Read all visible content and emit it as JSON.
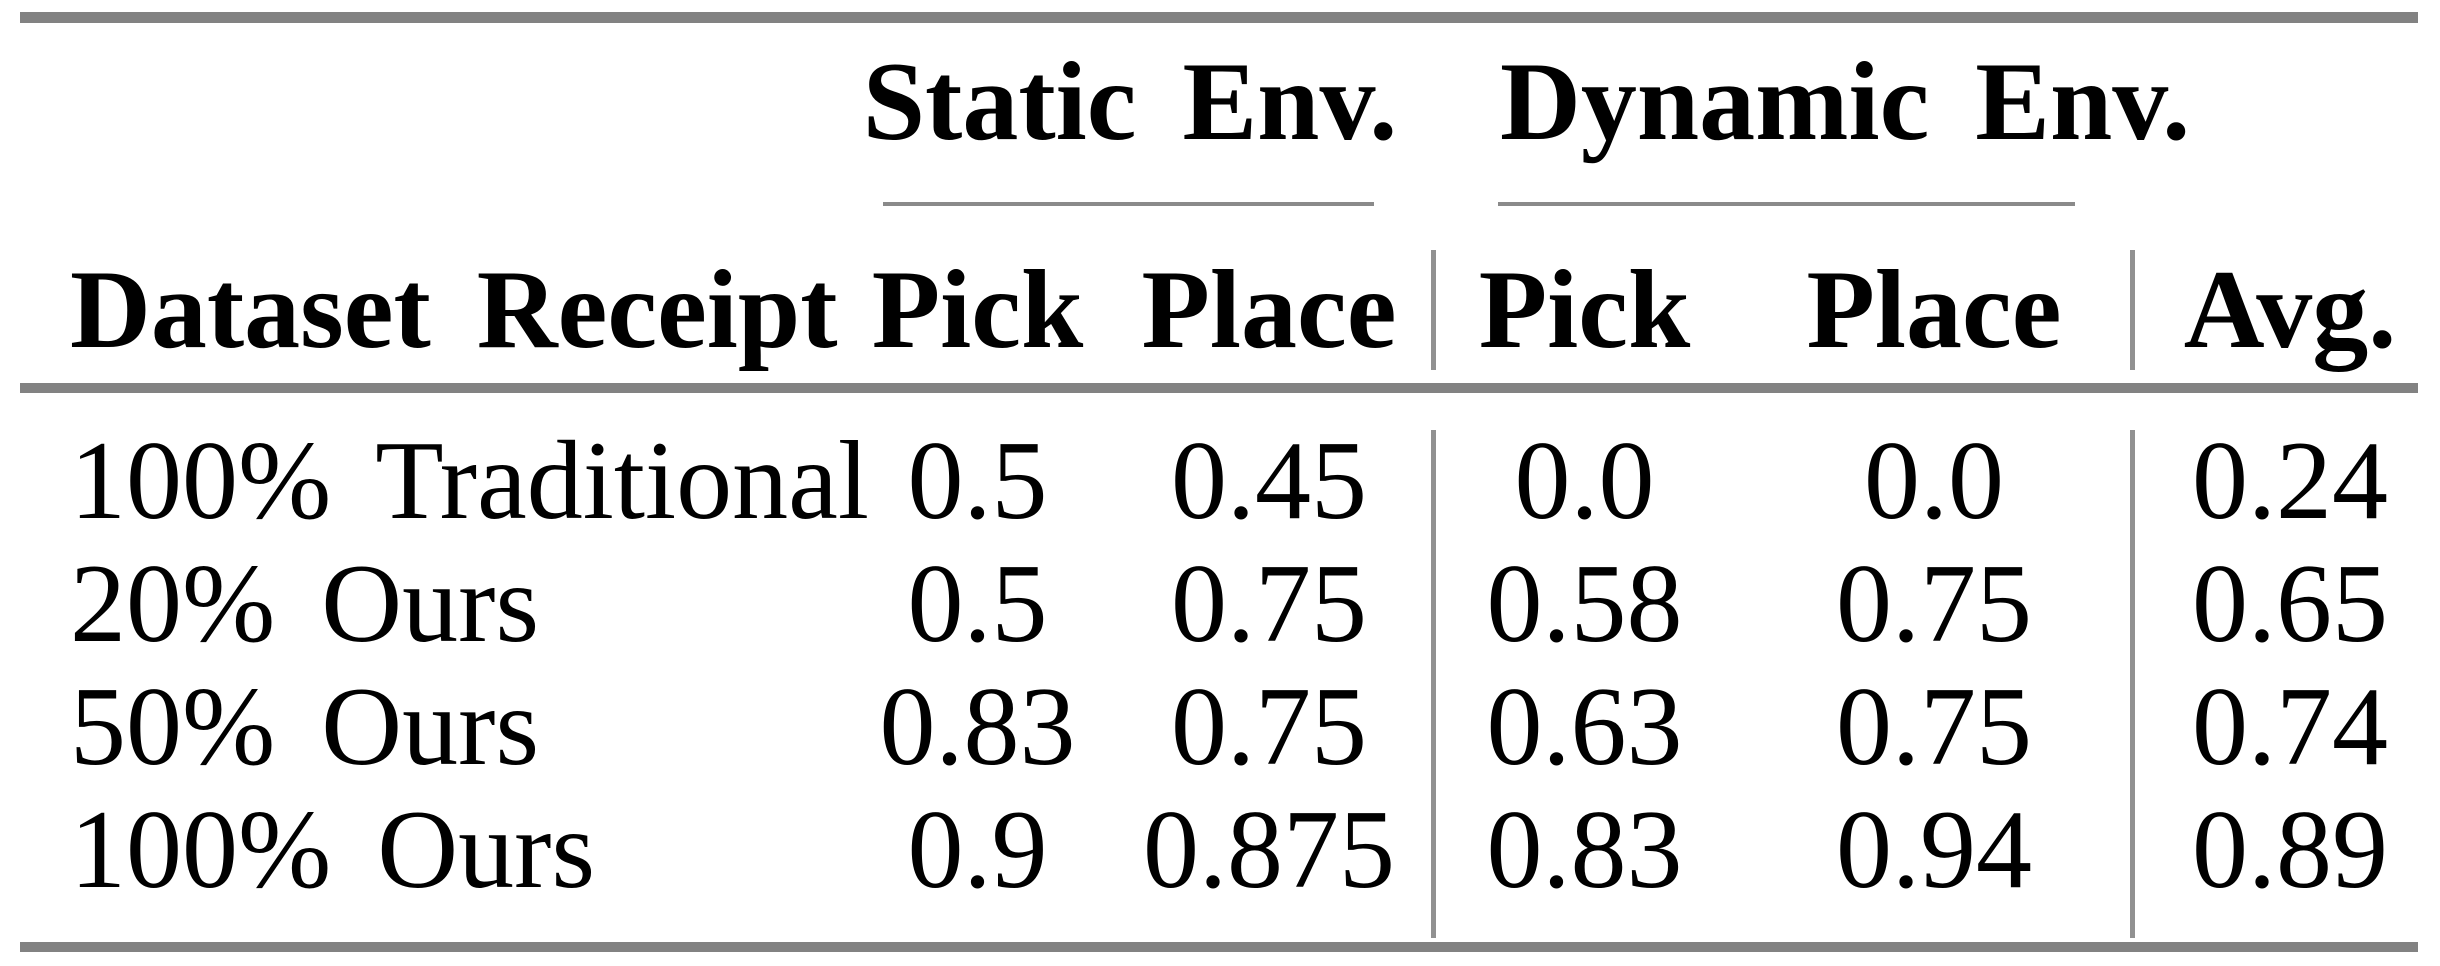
{
  "table": {
    "group_headers": {
      "static": "Static Env.",
      "dynamic": "Dynamic Env."
    },
    "column_headers": {
      "row_header": "Dataset Receipt",
      "static_pick": "Pick",
      "static_place": "Place",
      "dynamic_pick": "Pick",
      "dynamic_place": "Place",
      "avg": "Avg."
    },
    "rows": [
      {
        "label": "100% Traditional",
        "static_pick": "0.5",
        "static_place": "0.45",
        "dynamic_pick": "0.0",
        "dynamic_place": "0.0",
        "avg": "0.24"
      },
      {
        "label": "20% Ours",
        "static_pick": "0.5",
        "static_place": "0.75",
        "dynamic_pick": "0.58",
        "dynamic_place": "0.75",
        "avg": "0.65"
      },
      {
        "label": "50% Ours",
        "static_pick": "0.83",
        "static_place": "0.75",
        "dynamic_pick": "0.63",
        "dynamic_place": "0.75",
        "avg": "0.74"
      },
      {
        "label": "100% Ours",
        "static_pick": "0.9",
        "static_place": "0.875",
        "dynamic_pick": "0.83",
        "dynamic_place": "0.94",
        "avg": "0.89"
      }
    ],
    "colors": {
      "heavy_rule": "#828282",
      "light_rule": "#8a8a8a",
      "vertical_rule": "#919191",
      "text": "#000000",
      "background": "#ffffff"
    }
  }
}
